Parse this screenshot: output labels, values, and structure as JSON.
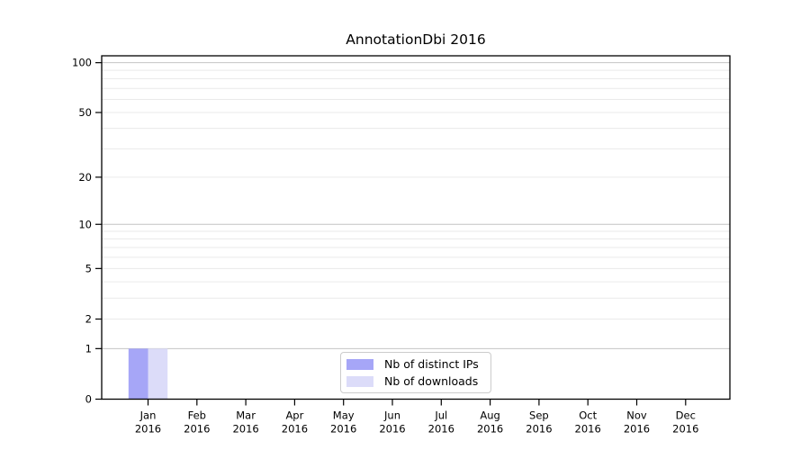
{
  "title": "AnnotationDbi 2016",
  "chart_data": {
    "type": "bar",
    "title": "AnnotationDbi 2016",
    "categories": [
      "Jan 2016",
      "Feb 2016",
      "Mar 2016",
      "Apr 2016",
      "May 2016",
      "Jun 2016",
      "Jul 2016",
      "Aug 2016",
      "Sep 2016",
      "Oct 2016",
      "Nov 2016",
      "Dec 2016"
    ],
    "series": [
      {
        "name": "Nb of distinct IPs",
        "color": "#a6a6f7",
        "values": [
          1,
          0,
          0,
          0,
          0,
          0,
          0,
          0,
          0,
          0,
          0,
          0
        ]
      },
      {
        "name": "Nb of downloads",
        "color": "#dcdcf9",
        "values": [
          1,
          0,
          0,
          0,
          0,
          0,
          0,
          0,
          0,
          0,
          0,
          0
        ]
      }
    ],
    "xlabel": "",
    "ylabel": "",
    "y_scale": "log10(1+y)",
    "ylim": [
      0,
      110
    ],
    "y_ticks": [
      100,
      50,
      20,
      10,
      5,
      2,
      1,
      0
    ],
    "grid": "horizontal, log minor lines; darker lines at 1, 10, 100",
    "legend_position": "bottom-center"
  },
  "colors": {
    "bar_distinct_ips": "#a6a6f7",
    "bar_downloads": "#dcdcf9",
    "grid_decade": "#c4c4c4",
    "grid_minor": "#eaeaea",
    "axis": "#000000",
    "legend_border": "#cccccc",
    "background": "#ffffff",
    "text": "#000000"
  }
}
